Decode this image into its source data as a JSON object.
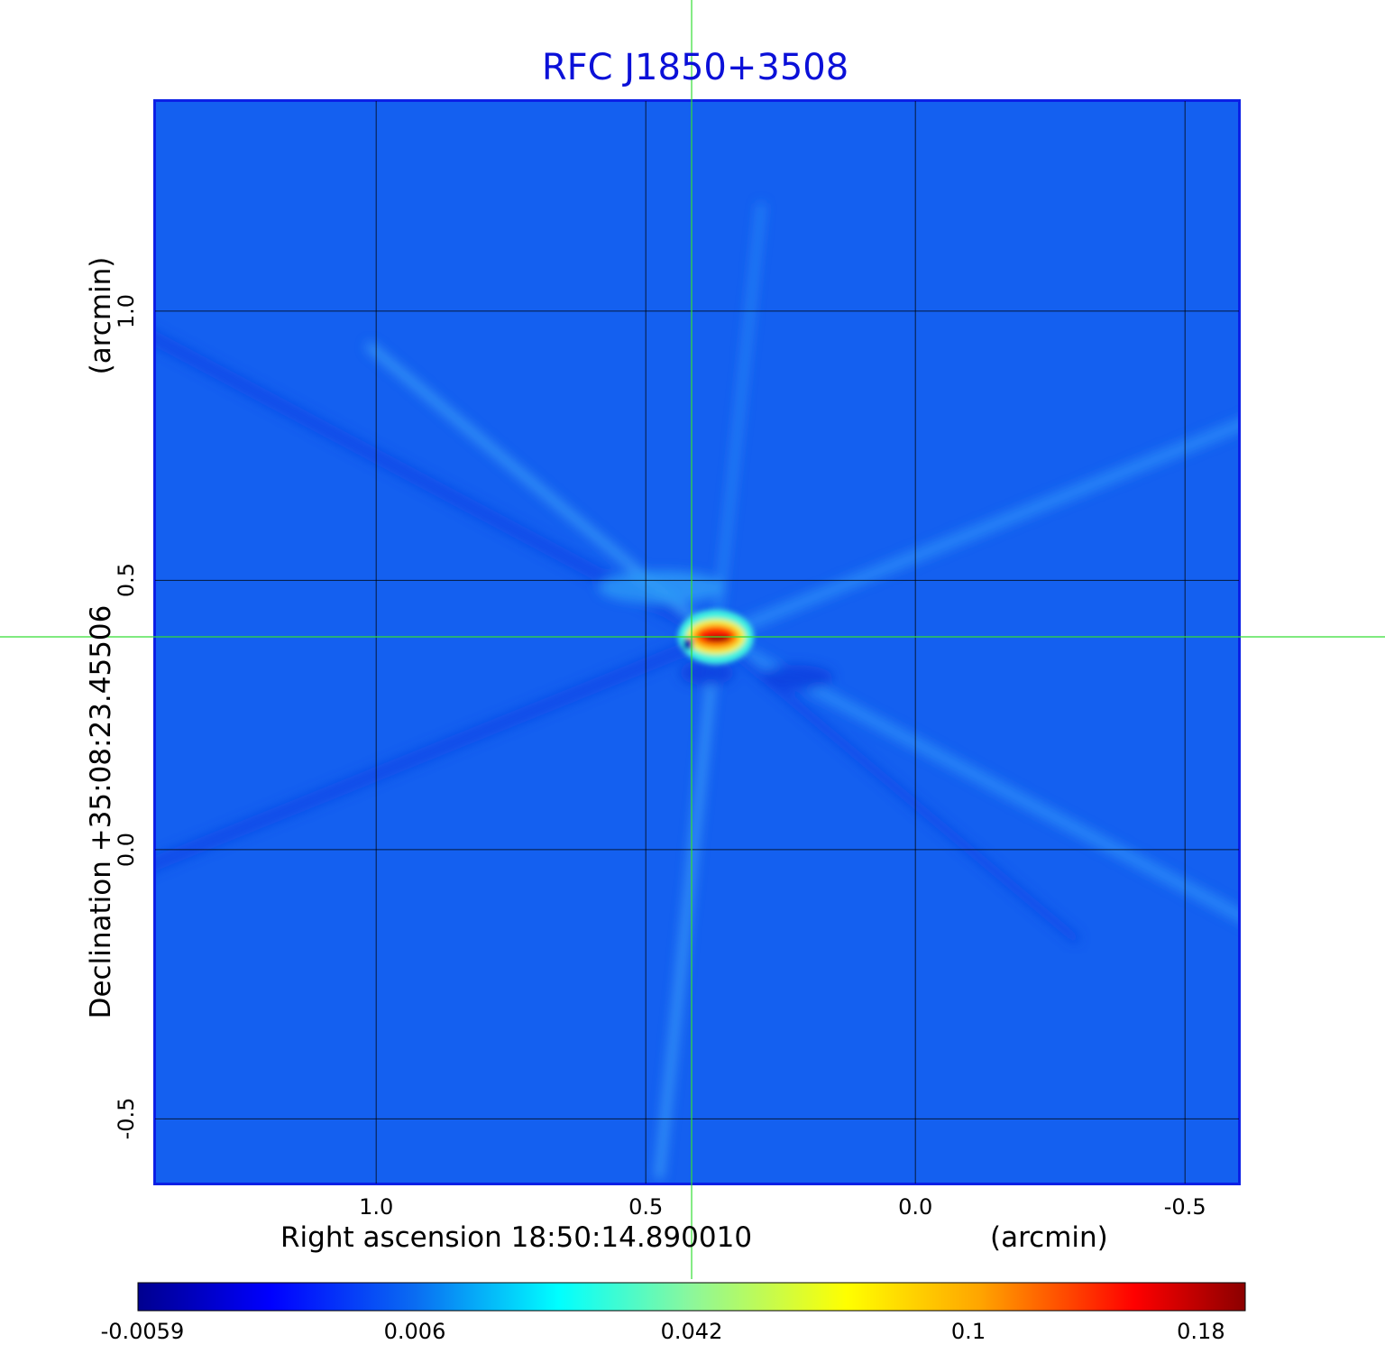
{
  "chart_data": {
    "type": "heatmap",
    "title": "RFC J1850+3508",
    "xlabel": "Right ascension  18:50:14.890010",
    "x_unit_label": "(arcmin)",
    "ylabel": "Declination  +35:08:23.45506",
    "y_unit_label": "(arcmin)",
    "x_ticks": [
      {
        "value": 1.0,
        "label": "1.0"
      },
      {
        "value": 0.5,
        "label": "0.5"
      },
      {
        "value": 0.0,
        "label": "0.0"
      },
      {
        "value": -0.5,
        "label": "-0.5"
      }
    ],
    "y_ticks": [
      {
        "value": 1.0,
        "label": "1.0"
      },
      {
        "value": 0.5,
        "label": "0.5"
      },
      {
        "value": 0.0,
        "label": "0.0"
      },
      {
        "value": -0.5,
        "label": "-0.5"
      }
    ],
    "xlim": [
      1.41,
      -0.6
    ],
    "ylim": [
      -0.62,
      1.39
    ],
    "grid": true,
    "crosshair": {
      "x": 0.415,
      "y": 0.395,
      "color": "#33dd33"
    },
    "colormap": "jet",
    "colorbar": {
      "orientation": "horizontal",
      "position": "bottom",
      "tick_labels": [
        "-0.0059",
        "0.006",
        "0.042",
        "0.1",
        "0.18"
      ],
      "tick_values": [
        -0.0059,
        0.006,
        0.042,
        0.1,
        0.18
      ]
    },
    "peak": {
      "x": 0.37,
      "y": 0.395,
      "value": 0.18
    },
    "background_level": 0.001
  }
}
